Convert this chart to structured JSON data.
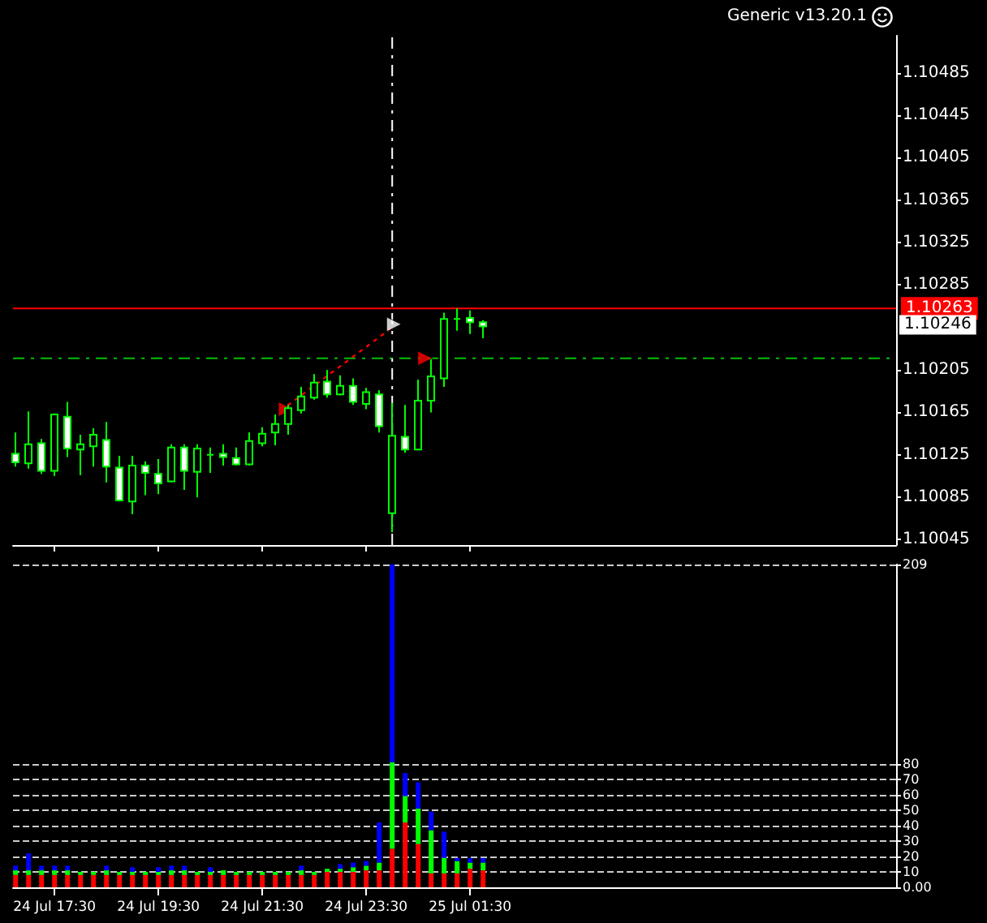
{
  "chart_data": [
    {
      "type": "candlestick",
      "color": "#00ff00",
      "tick_labels": "y",
      "grid": false,
      "x": [
        "--07-24T16:45",
        "--07-24T17:00",
        "--07-24T17:15",
        "--07-24T17:30",
        "--07-24T17:45",
        "--07-24T18:00",
        "--07-24T18:15",
        "--07-24T18:30",
        "--07-24T18:45",
        "--07-24T19:00",
        "--07-24T19:15",
        "--07-24T19:30",
        "--07-24T19:45",
        "--07-24T20:00",
        "--07-24T20:15",
        "--07-24T20:30",
        "--07-24T20:45",
        "--07-24T21:00",
        "--07-24T21:15",
        "--07-24T21:30",
        "--07-24T21:45",
        "--07-24T22:00",
        "--07-24T22:15",
        "--07-24T22:30",
        "--07-24T22:45",
        "--07-24T23:00",
        "--07-24T23:15",
        "--07-24T23:30",
        "--07-24T23:45",
        "--07-25T00:00",
        "--07-25T00:15",
        "--07-25T00:30",
        "--07-25T00:45",
        "--07-25T01:00",
        "--07-25T01:15",
        "--07-25T01:30",
        "--07-25T01:45"
      ],
      "ohlc": [
        [
          1.10126,
          1.10146,
          1.10114,
          1.10118
        ],
        [
          1.10117,
          1.10166,
          1.10112,
          1.10135
        ],
        [
          1.10136,
          1.1014,
          1.10107,
          1.1011
        ],
        [
          1.1011,
          1.10164,
          1.10105,
          1.10163
        ],
        [
          1.10161,
          1.10175,
          1.10123,
          1.10131
        ],
        [
          1.1013,
          1.10144,
          1.10106,
          1.10135
        ],
        [
          1.10133,
          1.1015,
          1.10114,
          1.10144
        ],
        [
          1.10139,
          1.10156,
          1.10099,
          1.10114
        ],
        [
          1.10113,
          1.10124,
          1.10081,
          1.10082
        ],
        [
          1.10081,
          1.10124,
          1.10069,
          1.10115
        ],
        [
          1.10115,
          1.10119,
          1.10087,
          1.10108
        ],
        [
          1.10107,
          1.10121,
          1.10088,
          1.10098
        ],
        [
          1.101,
          1.10135,
          1.10099,
          1.10132
        ],
        [
          1.10132,
          1.10135,
          1.10092,
          1.1011
        ],
        [
          1.10109,
          1.10135,
          1.10085,
          1.10131
        ],
        [
          1.10125,
          1.10132,
          1.10108,
          1.10125
        ],
        [
          1.10126,
          1.10135,
          1.10115,
          1.10123
        ],
        [
          1.10122,
          1.10132,
          1.10115,
          1.10116
        ],
        [
          1.10116,
          1.10146,
          1.10115,
          1.10138
        ],
        [
          1.10136,
          1.10151,
          1.10133,
          1.10145
        ],
        [
          1.10146,
          1.10163,
          1.10134,
          1.10154
        ],
        [
          1.10154,
          1.10172,
          1.10144,
          1.10169
        ],
        [
          1.10167,
          1.10189,
          1.10164,
          1.1018
        ],
        [
          1.10179,
          1.10201,
          1.10177,
          1.10193
        ],
        [
          1.10194,
          1.10205,
          1.10179,
          1.10182
        ],
        [
          1.10182,
          1.102,
          1.10181,
          1.1019
        ],
        [
          1.1019,
          1.10197,
          1.10172,
          1.10175
        ],
        [
          1.10173,
          1.10188,
          1.10168,
          1.10184
        ],
        [
          1.10182,
          1.10186,
          1.10146,
          1.10152
        ],
        [
          1.1007,
          1.10174,
          1.10052,
          1.10143
        ],
        [
          1.10142,
          1.10172,
          1.10127,
          1.1013
        ],
        [
          1.1013,
          1.10196,
          1.1013,
          1.10176
        ],
        [
          1.10176,
          1.10215,
          1.10165,
          1.10199
        ],
        [
          1.10197,
          1.10259,
          1.10189,
          1.10253
        ],
        [
          1.10253,
          1.10263,
          1.10242,
          1.10253
        ],
        [
          1.10254,
          1.10261,
          1.10239,
          1.1025
        ],
        [
          1.1025,
          1.10252,
          1.10235,
          1.10246
        ]
      ],
      "series": [
        {
          "type": "line",
          "color": "#ff0000",
          "line_style": "dotted",
          "marker": "none",
          "x": [
            "--07-24T22:00",
            "--07-25T00:00"
          ],
          "values": [
            1.10172,
            1.10245
          ]
        },
        {
          "type": "scatter",
          "marker": "triangle",
          "colors": [
            "#ff0000",
            "#ffffff",
            "#ff0000"
          ],
          "x": [
            "--07-24T21:57",
            "--07-25T00:02",
            "--07-25T00:38"
          ],
          "values": [
            1.10168,
            1.10248,
            1.10216
          ]
        }
      ],
      "xlim": [
        "--07-24T16:42",
        "--07-25T09:42"
      ],
      "ylim": [
        1.1004,
        1.1052
      ],
      "xticks": [
        {
          "value": "--07-24T17:30",
          "label": "24 Jul 17:30"
        },
        {
          "value": "--07-24T19:30",
          "label": "24 Jul 19:30"
        },
        {
          "value": "--07-24T21:30",
          "label": "24 Jul 21:30"
        },
        {
          "value": "--07-24T23:30",
          "label": "24 Jul 23:30"
        },
        {
          "value": "--07-25T01:30",
          "label": "25 Jul 01:30"
        }
      ],
      "yticks": [
        1.10045,
        1.10085,
        1.10125,
        1.10165,
        1.10205,
        1.10285,
        1.10325,
        1.10365,
        1.10405,
        1.10445,
        1.10485
      ],
      "ref_lines": [
        {
          "axis": "y",
          "value": 1.10263,
          "label": "1.10263",
          "color": "#ff0000",
          "line_style": "solid"
        },
        {
          "axis": "y",
          "value": 1.10216,
          "color": "#00c000",
          "line_style": "dashed"
        },
        {
          "axis": "x",
          "value": "--07-25T00:00",
          "color": "#ffffff",
          "line_style": "dashed"
        }
      ],
      "annotations": [
        "Generic v13.20.1",
        "1.10246"
      ]
    },
    {
      "type": "bar",
      "stacked": true,
      "grid": "y",
      "x": [
        "--07-24T16:45",
        "--07-24T17:00",
        "--07-24T17:15",
        "--07-24T17:30",
        "--07-24T17:45",
        "--07-24T18:00",
        "--07-24T18:15",
        "--07-24T18:30",
        "--07-24T18:45",
        "--07-24T19:00",
        "--07-24T19:15",
        "--07-24T19:30",
        "--07-24T19:45",
        "--07-24T20:00",
        "--07-24T20:15",
        "--07-24T20:30",
        "--07-24T20:45",
        "--07-24T21:00",
        "--07-24T21:15",
        "--07-24T21:30",
        "--07-24T21:45",
        "--07-24T22:00",
        "--07-24T22:15",
        "--07-24T22:30",
        "--07-24T22:45",
        "--07-24T23:00",
        "--07-24T23:15",
        "--07-24T23:30",
        "--07-24T23:45",
        "--07-25T00:00",
        "--07-25T00:15",
        "--07-25T00:30",
        "--07-25T00:45",
        "--07-25T01:00",
        "--07-25T01:15",
        "--07-25T01:30",
        "--07-25T01:45"
      ],
      "series": [
        {
          "color": "#ff0000",
          "values": [
            8,
            8,
            8,
            8,
            8,
            8,
            8,
            8,
            8,
            8,
            8,
            8,
            8,
            8,
            8,
            8,
            8,
            8,
            8,
            8,
            8,
            8,
            8,
            8,
            10,
            10,
            10,
            11,
            11,
            25,
            42,
            28,
            9,
            9,
            9,
            12,
            11
          ]
        },
        {
          "color": "#00ff00",
          "values": [
            3,
            3,
            3,
            3,
            3,
            2,
            2,
            3,
            2,
            2,
            2,
            2,
            3,
            3,
            2,
            2,
            3,
            2,
            2,
            2,
            2,
            2,
            3,
            2,
            2,
            2,
            3,
            3,
            5,
            56,
            17,
            23,
            28,
            10,
            8,
            4,
            5
          ]
        },
        {
          "color": "#0000ff",
          "values": [
            3,
            11,
            3,
            3,
            3,
            0,
            0,
            3,
            0,
            3,
            0,
            3,
            3,
            3,
            0,
            3,
            0,
            0,
            0,
            0,
            0,
            0,
            3,
            0,
            0,
            3,
            3,
            3,
            26,
            128,
            15,
            17,
            12,
            17,
            2,
            3,
            3
          ]
        }
      ],
      "xlim": [
        "--07-24T16:42",
        "--07-25T09:42"
      ],
      "ylim": [
        0,
        209
      ],
      "xticks": [
        {
          "value": "--07-24T17:30",
          "label": "24 Jul 17:30"
        },
        {
          "value": "--07-24T19:30",
          "label": "24 Jul 19:30"
        },
        {
          "value": "--07-24T21:30",
          "label": "24 Jul 21:30"
        },
        {
          "value": "--07-24T23:30",
          "label": "24 Jul 23:30"
        },
        {
          "value": "--07-25T01:30",
          "label": "25 Jul 01:30"
        }
      ],
      "yticks": [
        {
          "value": 0,
          "label": "0.00"
        },
        10,
        20,
        30,
        40,
        50,
        60,
        70,
        80,
        209
      ]
    }
  ]
}
